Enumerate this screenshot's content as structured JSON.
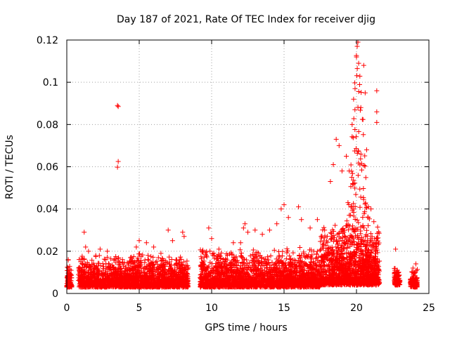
{
  "chart_data": {
    "type": "scatter",
    "title": "Day 187 of 2021, Rate Of TEC Index for receiver djig",
    "xlabel": "GPS time / hours",
    "ylabel": "ROTI / TECUs",
    "xlim": [
      0,
      25
    ],
    "ylim": [
      0,
      0.12
    ],
    "xticks": [
      0,
      5,
      10,
      15,
      20,
      25
    ],
    "yticks": [
      0,
      0.02,
      0.04,
      0.06,
      0.08,
      0.1,
      0.12
    ],
    "xtick_labels": [
      "0",
      "5",
      "10",
      "15",
      "20",
      "25"
    ],
    "ytick_labels": [
      "0",
      "0.02",
      "0.04",
      "0.06",
      "0.08",
      "0.1",
      "0.12"
    ],
    "grid": true,
    "marker": "+",
    "color": "#ff0000",
    "series": [
      {
        "name": "ROTI",
        "points": [
          [
            0.1,
            0.012
          ],
          [
            0.2,
            0.009
          ],
          [
            0.1,
            0.016
          ],
          [
            0.2,
            0.005
          ],
          [
            0.15,
            0.004
          ],
          [
            1.2,
            0.029
          ],
          [
            1.3,
            0.022
          ],
          [
            1.5,
            0.02
          ],
          [
            2.0,
            0.018
          ],
          [
            2.3,
            0.021
          ],
          [
            2.8,
            0.02
          ],
          [
            3.5,
            0.089
          ],
          [
            3.55,
            0.0885
          ],
          [
            3.55,
            0.0625
          ],
          [
            3.5,
            0.0598
          ],
          [
            4.4,
            0.017
          ],
          [
            4.8,
            0.022
          ],
          [
            5.0,
            0.025
          ],
          [
            5.5,
            0.024
          ],
          [
            6.0,
            0.022
          ],
          [
            6.5,
            0.019
          ],
          [
            7.0,
            0.03
          ],
          [
            7.3,
            0.025
          ],
          [
            8.0,
            0.029
          ],
          [
            8.1,
            0.027
          ],
          [
            9.8,
            0.031
          ],
          [
            10.0,
            0.026
          ],
          [
            10.5,
            0.021
          ],
          [
            11.5,
            0.024
          ],
          [
            12.0,
            0.024
          ],
          [
            12.2,
            0.031
          ],
          [
            12.3,
            0.033
          ],
          [
            12.5,
            0.029
          ],
          [
            13.0,
            0.03
          ],
          [
            13.5,
            0.028
          ],
          [
            14.0,
            0.03
          ],
          [
            14.5,
            0.033
          ],
          [
            14.8,
            0.04
          ],
          [
            15.0,
            0.042
          ],
          [
            15.3,
            0.036
          ],
          [
            16.0,
            0.041
          ],
          [
            16.2,
            0.035
          ],
          [
            16.8,
            0.031
          ],
          [
            17.3,
            0.035
          ],
          [
            17.8,
            0.03
          ],
          [
            18.2,
            0.053
          ],
          [
            18.4,
            0.061
          ],
          [
            18.6,
            0.073
          ],
          [
            18.8,
            0.07
          ],
          [
            19.0,
            0.058
          ],
          [
            19.3,
            0.065
          ],
          [
            19.5,
            0.058
          ],
          [
            19.7,
            0.08
          ],
          [
            19.8,
            0.092
          ],
          [
            19.9,
            0.097
          ],
          [
            20.0,
            0.112
          ],
          [
            20.05,
            0.117
          ],
          [
            20.1,
            0.119
          ],
          [
            20.15,
            0.109
          ],
          [
            20.3,
            0.088
          ],
          [
            20.5,
            0.108
          ],
          [
            20.6,
            0.095
          ],
          [
            20.7,
            0.068
          ],
          [
            21.4,
            0.096
          ],
          [
            21.4,
            0.086
          ],
          [
            21.4,
            0.081
          ],
          [
            21.2,
            0.034
          ],
          [
            21.0,
            0.04
          ],
          [
            20.8,
            0.036
          ],
          [
            22.7,
            0.021
          ],
          [
            22.8,
            0.011
          ],
          [
            23.9,
            0.012
          ],
          [
            24.0,
            0.006
          ],
          [
            24.1,
            0.014
          ]
        ]
      }
    ],
    "dense_bands": [
      {
        "x_range": [
          0.0,
          0.35
        ],
        "y_range": [
          0.003,
          0.017
        ]
      },
      {
        "x_range": [
          0.8,
          8.4
        ],
        "y_range": [
          0.003,
          0.019
        ]
      },
      {
        "x_range": [
          9.2,
          17.5
        ],
        "y_range": [
          0.003,
          0.022
        ]
      },
      {
        "x_range": [
          17.5,
          21.6
        ],
        "y_range": [
          0.004,
          0.034
        ]
      },
      {
        "x_range": [
          22.6,
          23.0
        ],
        "y_range": [
          0.004,
          0.014
        ]
      },
      {
        "x_range": [
          23.7,
          24.2
        ],
        "y_range": [
          0.003,
          0.013
        ]
      }
    ]
  }
}
